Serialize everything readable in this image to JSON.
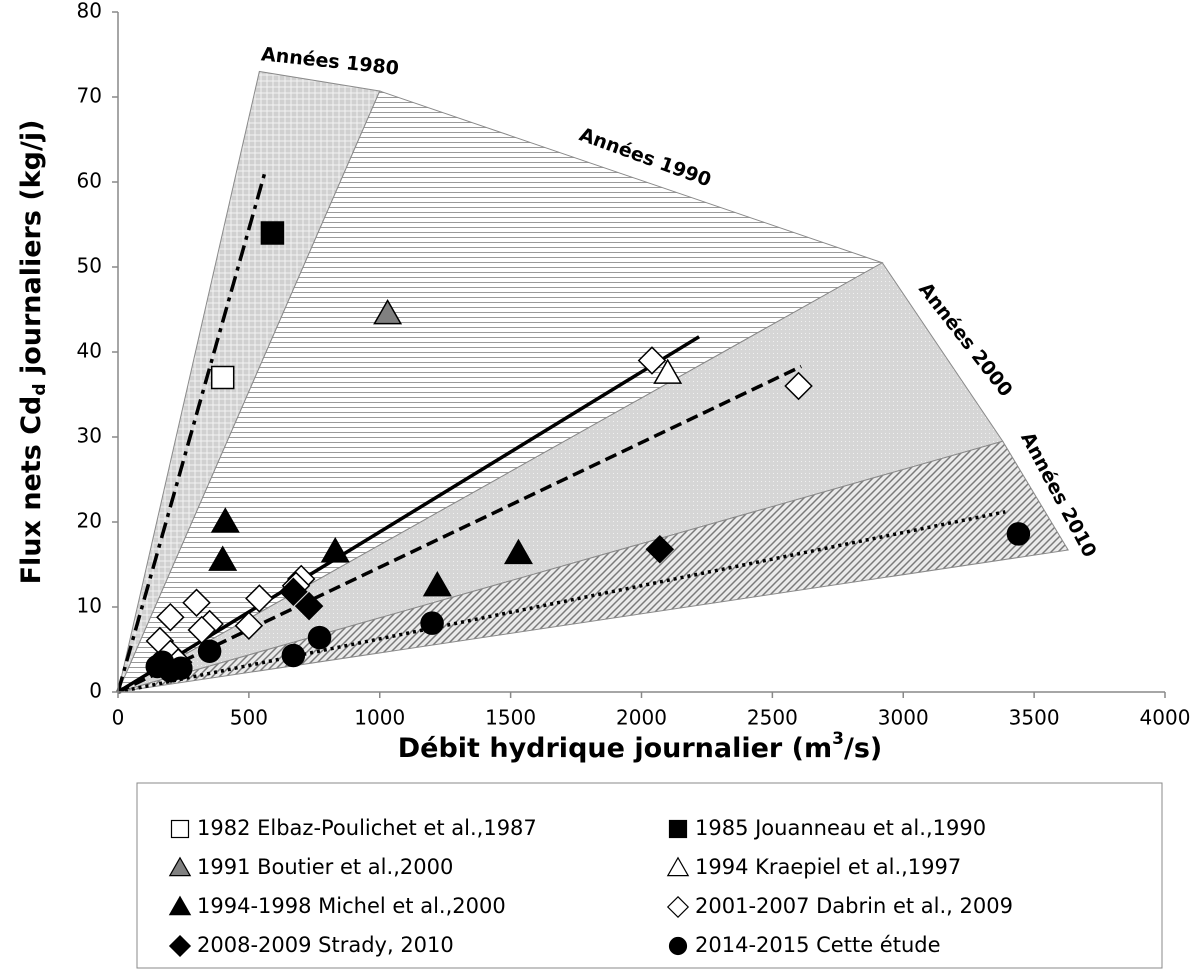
{
  "chart_data": {
    "type": "scatter",
    "x_label_parts": [
      "Débit hydrique journalier (m",
      "3",
      "/s)"
    ],
    "y_label_parts": [
      "Flux nets Cd",
      "d",
      " journaliers (kg/j)"
    ],
    "xlim": [
      0,
      4000
    ],
    "xticks": [
      0,
      500,
      1000,
      1500,
      2000,
      2500,
      3000,
      3500,
      4000
    ],
    "ylim": [
      0,
      80
    ],
    "yticks": [
      0,
      10,
      20,
      30,
      40,
      50,
      60,
      70,
      80
    ],
    "regions": [
      {
        "name": "Années 1980",
        "pattern": "crosshatch",
        "x": [
          0,
          540,
          1000
        ],
        "y": [
          0,
          73,
          70.7
        ]
      },
      {
        "name": "Années 1990",
        "pattern": "hlines",
        "x": [
          0,
          1000,
          2920
        ],
        "y": [
          0,
          70.7,
          50.5
        ]
      },
      {
        "name": "Années 2000",
        "pattern": "dots",
        "x": [
          0,
          2920,
          3380
        ],
        "y": [
          0,
          50.5,
          29.5
        ]
      },
      {
        "name": "Années 2010",
        "pattern": "diagonal",
        "x": [
          0,
          3380,
          3630
        ],
        "y": [
          0,
          29.5,
          16.7
        ]
      }
    ],
    "trend_lines": [
      {
        "style": "dashdot",
        "x": [
          0,
          560
        ],
        "y": [
          0,
          61
        ]
      },
      {
        "style": "solid",
        "x": [
          0,
          2220
        ],
        "y": [
          0,
          41.8
        ]
      },
      {
        "style": "dashed",
        "x": [
          0,
          2610
        ],
        "y": [
          0,
          38.3
        ]
      },
      {
        "style": "dotted",
        "x": [
          0,
          3390
        ],
        "y": [
          0,
          21.2
        ]
      }
    ],
    "series": [
      {
        "name": "1982 Elbaz-Poulichet et al.,1987",
        "marker": "square",
        "color": "#ffffff",
        "x": [
          400
        ],
        "values": [
          37
        ]
      },
      {
        "name": "1985 Jouanneau et al.,1990",
        "marker": "square",
        "color": "#000000",
        "x": [
          590
        ],
        "values": [
          54
        ]
      },
      {
        "name": "1991 Boutier et al.,2000",
        "marker": "triangle",
        "color": "#808080",
        "x": [
          1030
        ],
        "values": [
          44.5
        ]
      },
      {
        "name": "1994 Kraepiel et al.,1997",
        "marker": "triangle",
        "color": "#ffffff",
        "x": [
          2100
        ],
        "values": [
          37.5
        ]
      },
      {
        "name": "1994-1998 Michel et al.,2000",
        "marker": "triangle",
        "color": "#000000",
        "x": [
          410,
          400,
          830,
          1220,
          1530
        ],
        "values": [
          20,
          15.5,
          16.5,
          12.5,
          16.3
        ]
      },
      {
        "name": "2001-2007 Dabrin et al., 2009",
        "marker": "diamond",
        "color": "#ffffff",
        "x": [
          2040,
          2600,
          700,
          680,
          540,
          500,
          300,
          200,
          350,
          320,
          160,
          200,
          230
        ],
        "values": [
          39,
          36,
          13.3,
          12.5,
          11,
          7.8,
          10.5,
          8.8,
          8,
          7.3,
          6,
          4.5,
          3.5
        ]
      },
      {
        "name": "2008-2009 Strady, 2010",
        "marker": "diamond",
        "color": "#000000",
        "x": [
          2070,
          670,
          730
        ],
        "values": [
          16.8,
          11.8,
          10.1
        ]
      },
      {
        "name": "2014-2015 Cette étude",
        "marker": "circle",
        "color": "#000000",
        "x": [
          3440,
          1200,
          770,
          670,
          350,
          170,
          200,
          240,
          150
        ],
        "values": [
          18.6,
          8.1,
          6.4,
          4.3,
          4.8,
          3.5,
          2.5,
          2.8,
          3.0
        ]
      }
    ]
  }
}
